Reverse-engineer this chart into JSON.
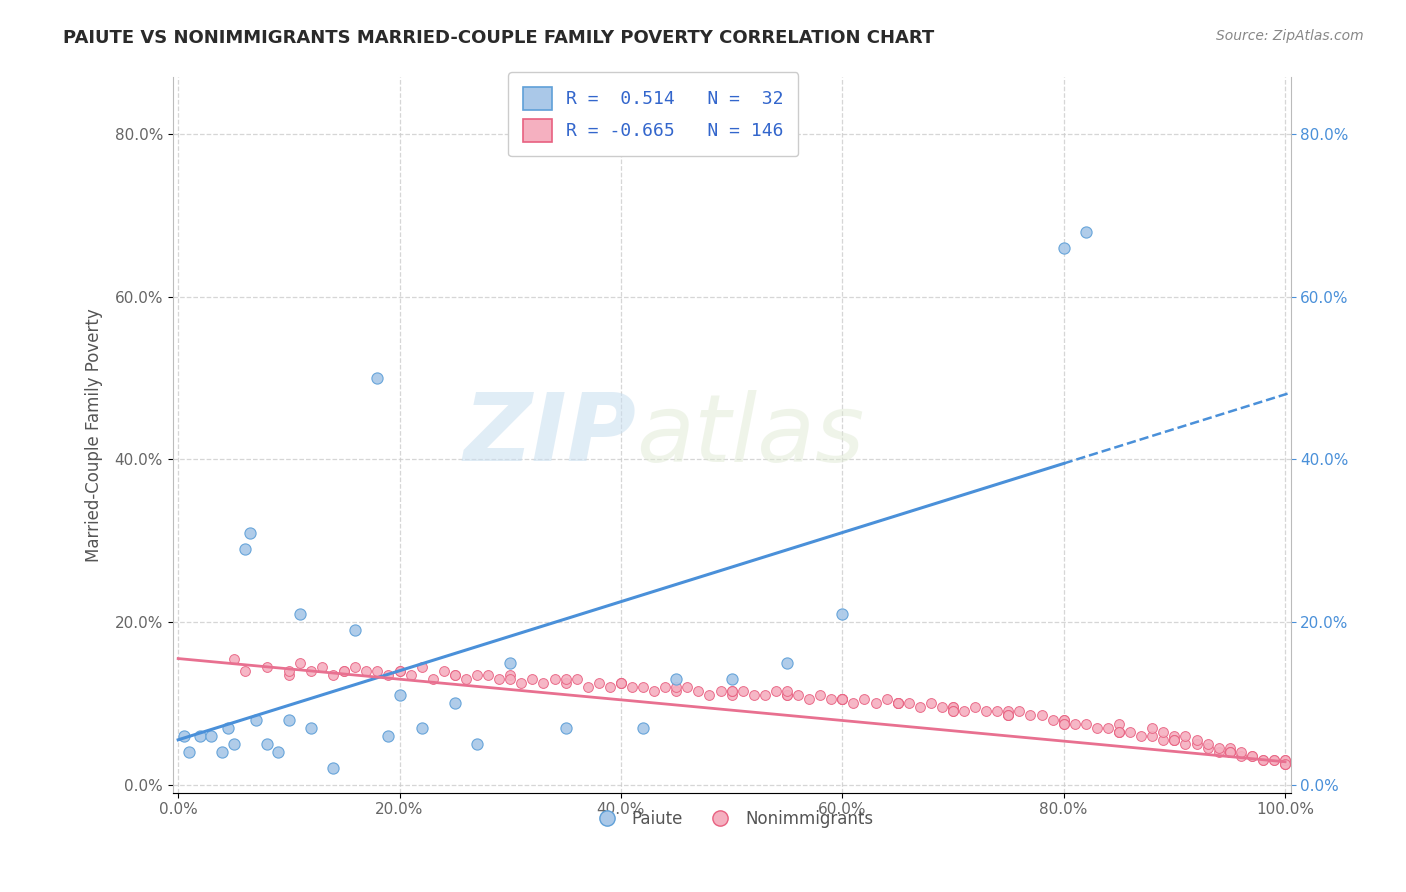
{
  "title": "PAIUTE VS NONIMMIGRANTS MARRIED-COUPLE FAMILY POVERTY CORRELATION CHART",
  "source": "Source: ZipAtlas.com",
  "ylabel": "Married-Couple Family Poverty",
  "R_paiute": 0.514,
  "N_paiute": 32,
  "R_nonimm": -0.665,
  "N_nonimm": 146,
  "paiute_fill": "#aac8e8",
  "paiute_edge": "#5fa0d8",
  "nonimm_fill": "#f5b0c0",
  "nonimm_edge": "#e86080",
  "paiute_line_color": "#4a90d9",
  "nonimm_line_color": "#e87090",
  "background_color": "#ffffff",
  "watermark_zip": "ZIP",
  "watermark_atlas": "atlas",
  "xlim": [
    -0.005,
    1.005
  ],
  "ylim": [
    -0.01,
    0.87
  ],
  "xticks": [
    0.0,
    0.2,
    0.4,
    0.6,
    0.8,
    1.0
  ],
  "yticks": [
    0.0,
    0.2,
    0.4,
    0.6,
    0.8
  ],
  "paiute_x": [
    0.005,
    0.01,
    0.02,
    0.03,
    0.04,
    0.045,
    0.05,
    0.06,
    0.065,
    0.07,
    0.08,
    0.09,
    0.1,
    0.11,
    0.12,
    0.14,
    0.16,
    0.18,
    0.19,
    0.2,
    0.22,
    0.25,
    0.27,
    0.3,
    0.35,
    0.42,
    0.45,
    0.5,
    0.55,
    0.6,
    0.8,
    0.82
  ],
  "paiute_y": [
    0.06,
    0.04,
    0.06,
    0.06,
    0.04,
    0.07,
    0.05,
    0.29,
    0.31,
    0.08,
    0.05,
    0.04,
    0.08,
    0.21,
    0.07,
    0.02,
    0.19,
    0.5,
    0.06,
    0.11,
    0.07,
    0.1,
    0.05,
    0.15,
    0.07,
    0.07,
    0.13,
    0.13,
    0.15,
    0.21,
    0.66,
    0.68
  ],
  "nonimm_x": [
    0.05,
    0.06,
    0.08,
    0.1,
    0.11,
    0.12,
    0.13,
    0.14,
    0.15,
    0.16,
    0.17,
    0.18,
    0.19,
    0.2,
    0.21,
    0.22,
    0.23,
    0.24,
    0.25,
    0.26,
    0.27,
    0.28,
    0.29,
    0.3,
    0.31,
    0.32,
    0.33,
    0.34,
    0.35,
    0.36,
    0.37,
    0.38,
    0.39,
    0.4,
    0.41,
    0.42,
    0.43,
    0.44,
    0.45,
    0.46,
    0.47,
    0.48,
    0.49,
    0.5,
    0.51,
    0.52,
    0.53,
    0.54,
    0.55,
    0.56,
    0.57,
    0.58,
    0.59,
    0.6,
    0.61,
    0.62,
    0.63,
    0.64,
    0.65,
    0.66,
    0.67,
    0.68,
    0.69,
    0.7,
    0.71,
    0.72,
    0.73,
    0.74,
    0.75,
    0.76,
    0.77,
    0.78,
    0.79,
    0.8,
    0.81,
    0.82,
    0.83,
    0.84,
    0.85,
    0.86,
    0.87,
    0.88,
    0.89,
    0.9,
    0.91,
    0.92,
    0.93,
    0.94,
    0.95,
    0.96,
    0.97,
    0.98,
    0.99,
    1.0,
    0.15,
    0.25,
    0.35,
    0.45,
    0.55,
    0.65,
    0.75,
    0.85,
    0.95,
    0.2,
    0.3,
    0.4,
    0.5,
    0.6,
    0.7,
    0.8,
    0.9,
    1.0,
    0.1,
    0.4,
    0.5,
    0.6,
    0.7,
    0.8,
    0.9,
    0.95,
    1.0,
    0.55,
    0.65,
    0.75,
    0.85,
    0.95,
    0.6,
    0.7,
    0.8,
    0.9,
    1.0,
    0.65,
    0.75,
    0.85,
    0.95,
    0.98,
    0.99,
    1.0,
    0.97,
    0.96,
    0.94,
    0.93,
    0.92,
    0.91,
    0.89,
    0.88
  ],
  "nonimm_y": [
    0.155,
    0.14,
    0.145,
    0.135,
    0.15,
    0.14,
    0.145,
    0.135,
    0.14,
    0.145,
    0.14,
    0.14,
    0.135,
    0.14,
    0.135,
    0.145,
    0.13,
    0.14,
    0.135,
    0.13,
    0.135,
    0.135,
    0.13,
    0.135,
    0.125,
    0.13,
    0.125,
    0.13,
    0.125,
    0.13,
    0.12,
    0.125,
    0.12,
    0.125,
    0.12,
    0.12,
    0.115,
    0.12,
    0.115,
    0.12,
    0.115,
    0.11,
    0.115,
    0.11,
    0.115,
    0.11,
    0.11,
    0.115,
    0.11,
    0.11,
    0.105,
    0.11,
    0.105,
    0.105,
    0.1,
    0.105,
    0.1,
    0.105,
    0.1,
    0.1,
    0.095,
    0.1,
    0.095,
    0.095,
    0.09,
    0.095,
    0.09,
    0.09,
    0.085,
    0.09,
    0.085,
    0.085,
    0.08,
    0.08,
    0.075,
    0.075,
    0.07,
    0.07,
    0.065,
    0.065,
    0.06,
    0.06,
    0.055,
    0.055,
    0.05,
    0.05,
    0.045,
    0.04,
    0.04,
    0.035,
    0.035,
    0.03,
    0.03,
    0.025,
    0.14,
    0.135,
    0.13,
    0.12,
    0.11,
    0.1,
    0.09,
    0.075,
    0.04,
    0.14,
    0.13,
    0.125,
    0.115,
    0.105,
    0.095,
    0.08,
    0.06,
    0.03,
    0.14,
    0.125,
    0.115,
    0.105,
    0.09,
    0.075,
    0.055,
    0.045,
    0.025,
    0.115,
    0.1,
    0.085,
    0.065,
    0.04,
    0.105,
    0.09,
    0.075,
    0.055,
    0.03,
    0.1,
    0.085,
    0.065,
    0.04,
    0.03,
    0.03,
    0.025,
    0.035,
    0.04,
    0.045,
    0.05,
    0.055,
    0.06,
    0.065,
    0.07
  ]
}
